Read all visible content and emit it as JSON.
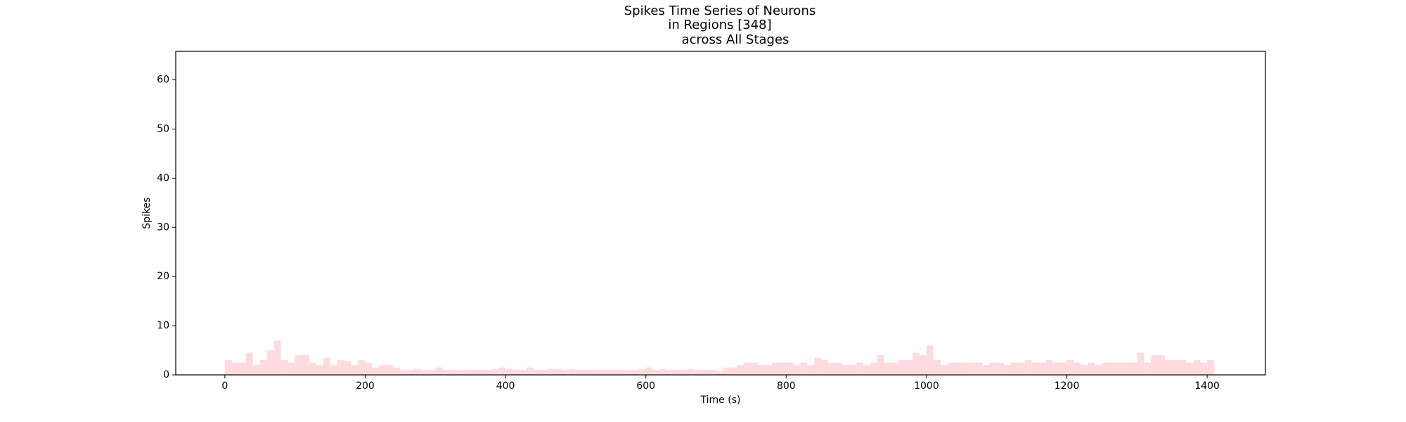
{
  "chart_data": {
    "type": "histogram",
    "title": [
      "Spikes Time Series of Neurons",
      "in Regions [348]",
      "across All Stages"
    ],
    "xlabel": "Time (s)",
    "ylabel": "Spikes",
    "color": "#ffdbe0",
    "bins": [
      0,
      10,
      20,
      30,
      40,
      50,
      60,
      70,
      80,
      90,
      100,
      110,
      120,
      130,
      140,
      150,
      160,
      170,
      180,
      190,
      200,
      210,
      220,
      230,
      240,
      250,
      260,
      270,
      280,
      290,
      300,
      310,
      320,
      330,
      340,
      350,
      360,
      370,
      380,
      390,
      400,
      410,
      420,
      430,
      440,
      450,
      460,
      470,
      480,
      490,
      500,
      510,
      520,
      530,
      540,
      550,
      560,
      570,
      580,
      590,
      600,
      610,
      620,
      630,
      640,
      650,
      660,
      670,
      680,
      690,
      700,
      710,
      720,
      730,
      740,
      750,
      760,
      770,
      780,
      790,
      800,
      810,
      820,
      830,
      840,
      850,
      860,
      870,
      880,
      890,
      900,
      910,
      920,
      930,
      940,
      950,
      960,
      970,
      980,
      990,
      1000,
      1010,
      1020,
      1030,
      1040,
      1050,
      1060,
      1070,
      1080,
      1090,
      1100,
      1110,
      1120,
      1130,
      1140,
      1150,
      1160,
      1170,
      1180,
      1190,
      1200,
      1210,
      1220,
      1230,
      1240,
      1250,
      1260,
      1270,
      1280,
      1290,
      1300,
      1310,
      1320,
      1330,
      1340,
      1350,
      1360,
      1370,
      1380,
      1390,
      1400,
      1410
    ],
    "counts": [
      3,
      2.5,
      2.5,
      4.5,
      2,
      3,
      5,
      7,
      3,
      2.5,
      4,
      4,
      2.5,
      2,
      3.5,
      2,
      3,
      2.8,
      2,
      3,
      2.5,
      1.5,
      2,
      2,
      1.5,
      1,
      1,
      1.2,
      1,
      1,
      1.5,
      1,
      1,
      1,
      1,
      1,
      1,
      1,
      1.2,
      1.5,
      1.2,
      1,
      1,
      1.5,
      1,
      1,
      1.2,
      1.2,
      1,
      1.2,
      1,
      1,
      1,
      1,
      1,
      1,
      1,
      1,
      1,
      1.2,
      1.5,
      1,
      1.2,
      1,
      1,
      1,
      1.2,
      1,
      1,
      1,
      0.8,
      1.5,
      1.5,
      2,
      2.5,
      2.5,
      2,
      2,
      2.5,
      2.5,
      2.5,
      2,
      2.5,
      2,
      3.5,
      3,
      2.5,
      2.5,
      2,
      2,
      2.5,
      2,
      2.5,
      4,
      2.5,
      2.5,
      3,
      3,
      4.5,
      4,
      6,
      3,
      2,
      2.5,
      2.5,
      2.5,
      2.5,
      2.5,
      2,
      2.5,
      2.5,
      2,
      2.5,
      2.5,
      3,
      2.5,
      2.5,
      3,
      2.5,
      2.5,
      3,
      2.5,
      2,
      2.5,
      2,
      2.5,
      2.5,
      2.5,
      2.5,
      2.5,
      4.5,
      2.5,
      4,
      4,
      3,
      3,
      3,
      2.5,
      3,
      2.5,
      3
    ],
    "xlim": [
      -70,
      1483
    ],
    "ylim": [
      0,
      65.8
    ],
    "xticks": [
      0,
      200,
      400,
      600,
      800,
      1000,
      1200,
      1400
    ],
    "yticks": [
      0,
      10,
      20,
      30,
      40,
      50,
      60
    ]
  }
}
